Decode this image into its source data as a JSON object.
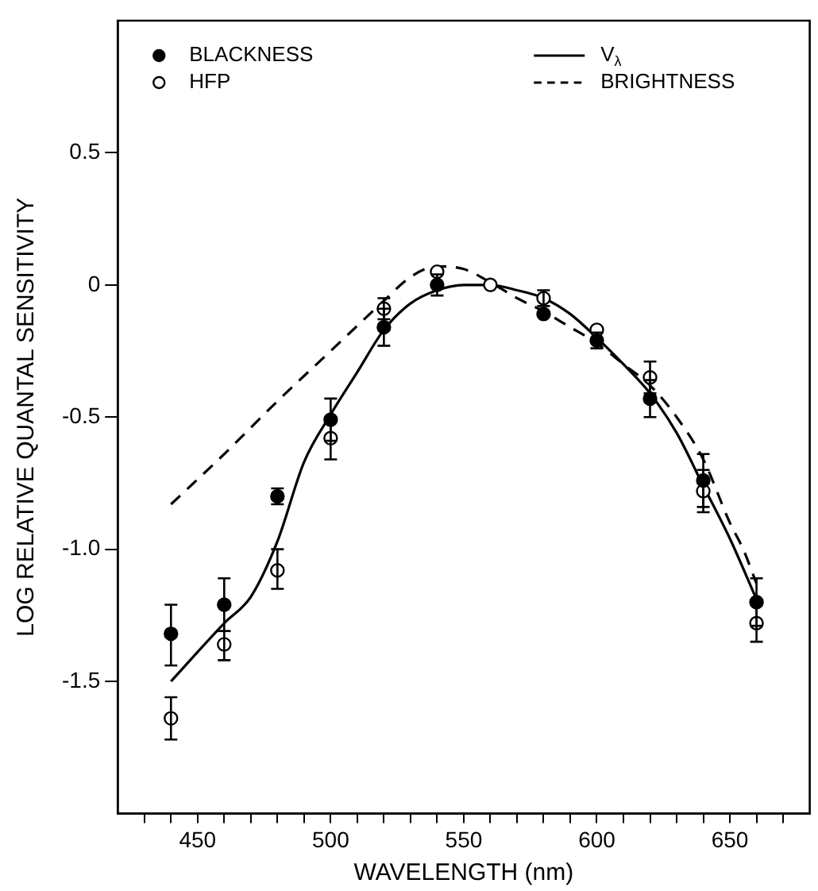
{
  "chart_data": {
    "type": "scatter",
    "xlabel": "WAVELENGTH (nm)",
    "ylabel": "LOG RELATIVE QUANTAL SENSITIVITY",
    "xlim": [
      420,
      680
    ],
    "ylim": [
      -2,
      1
    ],
    "xticks": [
      {
        "value": 430,
        "label": null
      },
      {
        "value": 440,
        "label": null
      },
      450,
      {
        "value": 460,
        "label": null
      },
      {
        "value": 470,
        "label": null
      },
      {
        "value": 480,
        "label": null
      },
      {
        "value": 490,
        "label": null
      },
      500,
      {
        "value": 510,
        "label": null
      },
      {
        "value": 520,
        "label": null
      },
      {
        "value": 530,
        "label": null
      },
      {
        "value": 540,
        "label": null
      },
      550,
      {
        "value": 560,
        "label": null
      },
      {
        "value": 570,
        "label": null
      },
      {
        "value": 580,
        "label": null
      },
      {
        "value": 590,
        "label": null
      },
      600,
      {
        "value": 610,
        "label": null
      },
      {
        "value": 620,
        "label": null
      },
      {
        "value": 630,
        "label": null
      },
      {
        "value": 640,
        "label": null
      },
      650,
      {
        "value": 660,
        "label": null
      },
      {
        "value": 670,
        "label": null
      }
    ],
    "yticks": [
      {
        "value": -1.5,
        "label": "-1.5"
      },
      {
        "value": -1,
        "label": "-1.0"
      },
      {
        "value": -0.5,
        "label": "-0.5"
      },
      0,
      0.5
    ],
    "legend": "top",
    "series": [
      {
        "name": "BLACKNESS",
        "type": "scatter",
        "marker": "circle",
        "color": "#000000",
        "x": [
          440,
          460,
          480,
          500,
          520,
          540,
          580,
          600,
          620,
          640,
          660
        ],
        "values": [
          -1.32,
          -1.21,
          -0.8,
          -0.51,
          -0.16,
          0.0,
          -0.11,
          -0.21,
          -0.43,
          -0.74,
          -1.2
        ],
        "errors": [
          [
            -1.44,
            -1.21
          ],
          [
            -1.31,
            -1.11
          ],
          [
            -0.83,
            -0.77
          ],
          [
            -0.59,
            -0.43
          ],
          [
            -0.23,
            -0.09
          ],
          [
            -0.04,
            0.04
          ],
          null,
          [
            -0.24,
            -0.18
          ],
          [
            -0.5,
            -0.36
          ],
          [
            -0.84,
            -0.64
          ],
          [
            -1.29,
            -1.11
          ]
        ]
      },
      {
        "name": "HFP",
        "type": "scatter",
        "marker": "circle",
        "color": "#ffffff",
        "x": [
          440,
          460,
          480,
          500,
          520,
          540,
          560,
          580,
          600,
          620,
          640,
          660
        ],
        "values": [
          -1.64,
          -1.36,
          -1.08,
          -0.58,
          -0.09,
          0.05,
          0.0,
          -0.05,
          -0.17,
          -0.35,
          -0.78,
          -1.28
        ],
        "errors": [
          [
            -1.72,
            -1.56
          ],
          [
            -1.42,
            -1.31
          ],
          [
            -1.15,
            -1.0
          ],
          [
            -0.66,
            -0.5
          ],
          [
            -0.13,
            -0.05
          ],
          null,
          null,
          [
            -0.08,
            -0.02
          ],
          null,
          [
            -0.41,
            -0.29
          ],
          [
            -0.86,
            -0.7
          ],
          [
            -1.35,
            -1.21
          ]
        ]
      },
      {
        "name": "V$_{λ}$",
        "type": "line",
        "line_style": "solid",
        "marker": "none",
        "color": "#000000",
        "x": [
          440,
          460,
          470,
          480,
          490,
          500,
          510,
          520,
          530,
          540,
          550,
          560,
          570,
          580,
          590,
          600,
          610,
          620,
          630,
          640,
          650,
          660
        ],
        "values": [
          -1.5,
          -1.28,
          -1.18,
          -0.97,
          -0.67,
          -0.49,
          -0.33,
          -0.17,
          -0.07,
          -0.02,
          0.0,
          0.0,
          -0.02,
          -0.05,
          -0.11,
          -0.2,
          -0.3,
          -0.41,
          -0.56,
          -0.76,
          -0.96,
          -1.19
        ]
      },
      {
        "name": "BRIGHTNESS",
        "type": "line",
        "line_style": "dashed",
        "marker": "none",
        "color": "#000000",
        "x": [
          440,
          460,
          480,
          500,
          520,
          530,
          540,
          550,
          560,
          570,
          580,
          590,
          600,
          610,
          620,
          630,
          640,
          650,
          655,
          660
        ],
        "values": [
          -0.83,
          -0.64,
          -0.44,
          -0.25,
          -0.06,
          0.03,
          0.07,
          0.06,
          0.01,
          -0.05,
          -0.1,
          -0.16,
          -0.22,
          -0.3,
          -0.38,
          -0.5,
          -0.66,
          -0.9,
          -1.0,
          -1.13
        ]
      }
    ]
  }
}
